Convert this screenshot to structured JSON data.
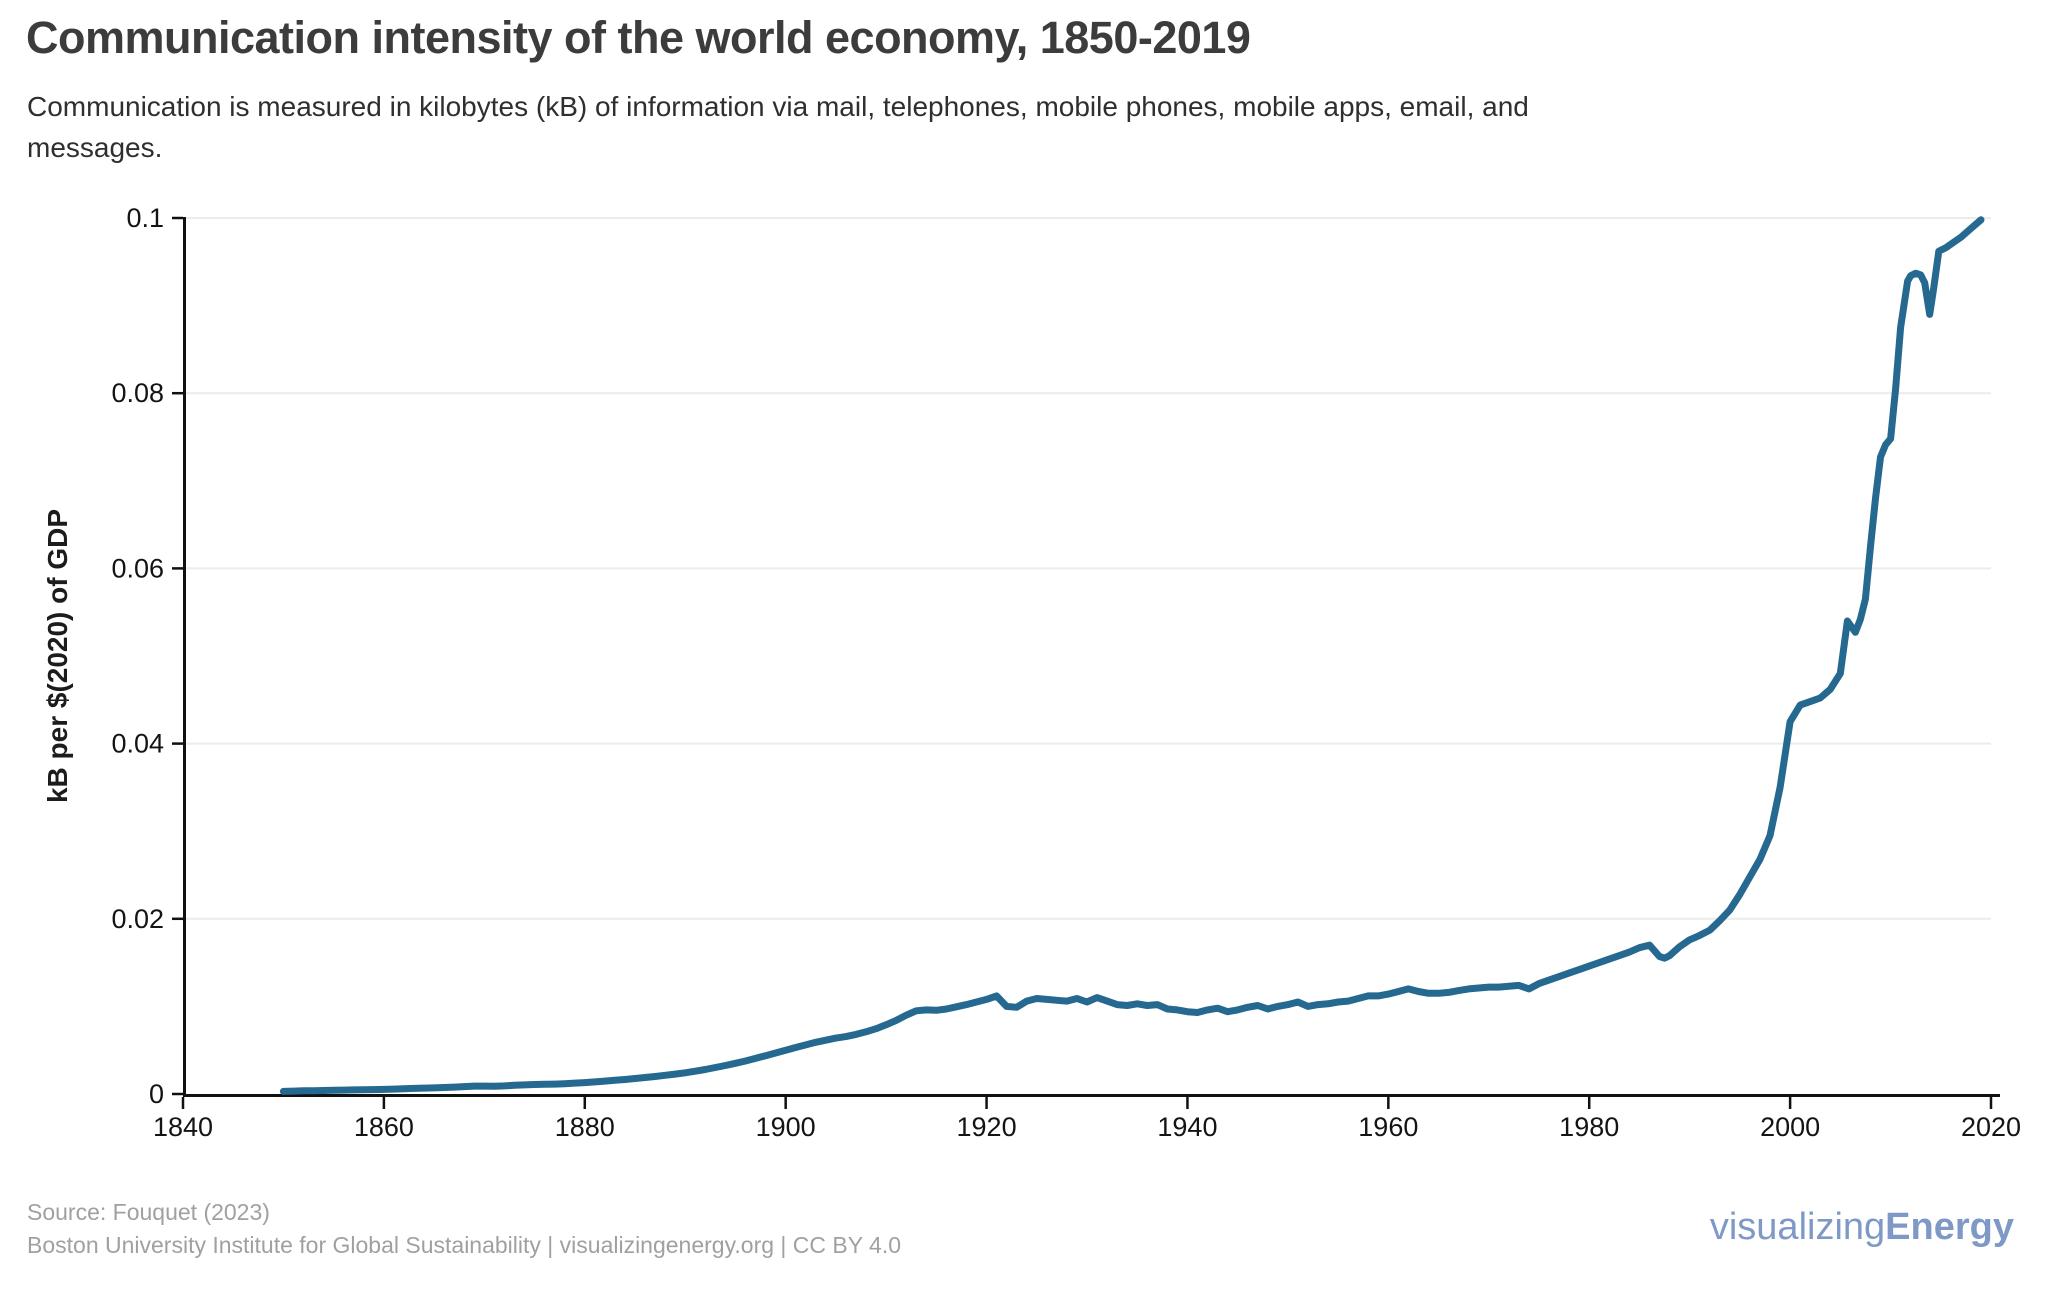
{
  "header": {
    "title": "Communication intensity of the world economy, 1850-2019",
    "subtitle_line1": "Communication is measured in kilobytes (kB) of information via mail, telephones, mobile phones, mobile apps, email, and",
    "subtitle_line2": "messages."
  },
  "footer": {
    "source": "Source: Fouquet (2023)",
    "attribution": "Boston University Institute for Global Sustainability | visualizingenergy.org | CC BY 4.0",
    "logo_regular": "visualizing",
    "logo_bold": "Energy"
  },
  "colors": {
    "background": "#ffffff",
    "title": "#3c3c3c",
    "subtitle": "#2f2f2f",
    "axis": "#111111",
    "grid": "#ececec",
    "tick_label": "#141414",
    "line": "#256890",
    "footer_text": "#a0a0a0",
    "logo": "#7f99c6"
  },
  "chart_data": {
    "type": "line",
    "title": "Communication intensity of the world economy, 1850-2019",
    "xlabel": "",
    "ylabel": "kB per $(2020) of GDP",
    "xlim": [
      1840,
      2020
    ],
    "ylim": [
      0,
      0.1
    ],
    "grid": "horizontal",
    "legend_position": "none",
    "x_ticks": [
      1840,
      1860,
      1880,
      1900,
      1920,
      1940,
      1960,
      1980,
      2000,
      2020
    ],
    "y_ticks": [
      {
        "value": 0,
        "label": "0"
      },
      {
        "value": 0.02,
        "label": "0.02"
      },
      {
        "value": 0.04,
        "label": "0.04"
      },
      {
        "value": 0.06,
        "label": "0.06"
      },
      {
        "value": 0.08,
        "label": "0.08"
      },
      {
        "value": 0.1,
        "label": "0.1"
      }
    ],
    "series": [
      {
        "name": "Communication intensity of the world economy",
        "color": "#256890",
        "stroke_width": 7,
        "points": [
          [
            1850,
            0.0003
          ],
          [
            1851,
            0.00033
          ],
          [
            1852,
            0.00036
          ],
          [
            1853,
            0.00038
          ],
          [
            1854,
            0.0004
          ],
          [
            1855,
            0.00042
          ],
          [
            1856,
            0.00045
          ],
          [
            1857,
            0.00047
          ],
          [
            1858,
            0.00049
          ],
          [
            1859,
            0.0005
          ],
          [
            1860,
            0.00052
          ],
          [
            1861,
            0.00056
          ],
          [
            1862,
            0.0006
          ],
          [
            1863,
            0.00064
          ],
          [
            1864,
            0.00067
          ],
          [
            1865,
            0.0007
          ],
          [
            1866,
            0.00074
          ],
          [
            1867,
            0.00079
          ],
          [
            1868,
            0.00085
          ],
          [
            1869,
            0.0009
          ],
          [
            1870,
            0.0009
          ],
          [
            1871,
            0.00089
          ],
          [
            1872,
            0.00093
          ],
          [
            1873,
            0.00099
          ],
          [
            1874,
            0.00104
          ],
          [
            1875,
            0.00108
          ],
          [
            1876,
            0.00111
          ],
          [
            1877,
            0.00113
          ],
          [
            1878,
            0.00118
          ],
          [
            1879,
            0.00124
          ],
          [
            1880,
            0.0013
          ],
          [
            1881,
            0.00138
          ],
          [
            1882,
            0.00147
          ],
          [
            1883,
            0.00156
          ],
          [
            1884,
            0.00166
          ],
          [
            1885,
            0.00177
          ],
          [
            1886,
            0.00188
          ],
          [
            1887,
            0.002
          ],
          [
            1888,
            0.00213
          ],
          [
            1889,
            0.00227
          ],
          [
            1890,
            0.00242
          ],
          [
            1891,
            0.0026
          ],
          [
            1892,
            0.0028
          ],
          [
            1893,
            0.00302
          ],
          [
            1894,
            0.00325
          ],
          [
            1895,
            0.0035
          ],
          [
            1896,
            0.00377
          ],
          [
            1897,
            0.00406
          ],
          [
            1898,
            0.00437
          ],
          [
            1899,
            0.00468
          ],
          [
            1900,
            0.005
          ],
          [
            1901,
            0.00531
          ],
          [
            1902,
            0.00561
          ],
          [
            1903,
            0.0059
          ],
          [
            1904,
            0.00614
          ],
          [
            1905,
            0.00638
          ],
          [
            1906,
            0.00655
          ],
          [
            1907,
            0.0068
          ],
          [
            1908,
            0.0071
          ],
          [
            1909,
            0.00745
          ],
          [
            1910,
            0.0079
          ],
          [
            1911,
            0.0084
          ],
          [
            1912,
            0.009
          ],
          [
            1913,
            0.0095
          ],
          [
            1914,
            0.0096
          ],
          [
            1915,
            0.00955
          ],
          [
            1916,
            0.0097
          ],
          [
            1917,
            0.00995
          ],
          [
            1918,
            0.0102
          ],
          [
            1919,
            0.0105
          ],
          [
            1920,
            0.0108
          ],
          [
            1921,
            0.0112
          ],
          [
            1922,
            0.01
          ],
          [
            1923,
            0.0099
          ],
          [
            1924,
            0.0106
          ],
          [
            1925,
            0.0109
          ],
          [
            1926,
            0.0108
          ],
          [
            1927,
            0.0107
          ],
          [
            1928,
            0.0106
          ],
          [
            1929,
            0.0109
          ],
          [
            1930,
            0.0105
          ],
          [
            1931,
            0.011
          ],
          [
            1932,
            0.0106
          ],
          [
            1933,
            0.0102
          ],
          [
            1934,
            0.0101
          ],
          [
            1935,
            0.0103
          ],
          [
            1936,
            0.0101
          ],
          [
            1937,
            0.0102
          ],
          [
            1938,
            0.0097
          ],
          [
            1939,
            0.0096
          ],
          [
            1940,
            0.0094
          ],
          [
            1941,
            0.0093
          ],
          [
            1942,
            0.0096
          ],
          [
            1943,
            0.0098
          ],
          [
            1944,
            0.0094
          ],
          [
            1945,
            0.0096
          ],
          [
            1946,
            0.0099
          ],
          [
            1947,
            0.0101
          ],
          [
            1948,
            0.0097
          ],
          [
            1949,
            0.01
          ],
          [
            1950,
            0.0102
          ],
          [
            1951,
            0.0105
          ],
          [
            1952,
            0.01
          ],
          [
            1953,
            0.0102
          ],
          [
            1954,
            0.0103
          ],
          [
            1955,
            0.0105
          ],
          [
            1956,
            0.0106
          ],
          [
            1957,
            0.0109
          ],
          [
            1958,
            0.0112
          ],
          [
            1959,
            0.0112
          ],
          [
            1960,
            0.0114
          ],
          [
            1961,
            0.0117
          ],
          [
            1962,
            0.012
          ],
          [
            1963,
            0.0117
          ],
          [
            1964,
            0.0115
          ],
          [
            1965,
            0.0115
          ],
          [
            1966,
            0.0116
          ],
          [
            1967,
            0.0118
          ],
          [
            1968,
            0.012
          ],
          [
            1969,
            0.0121
          ],
          [
            1970,
            0.0122
          ],
          [
            1971,
            0.0122
          ],
          [
            1972,
            0.0123
          ],
          [
            1973,
            0.0124
          ],
          [
            1974,
            0.012
          ],
          [
            1975,
            0.0126
          ],
          [
            1976,
            0.013
          ],
          [
            1977,
            0.0134
          ],
          [
            1978,
            0.0138
          ],
          [
            1979,
            0.0142
          ],
          [
            1980,
            0.0146
          ],
          [
            1981,
            0.015
          ],
          [
            1982,
            0.0154
          ],
          [
            1983,
            0.0158
          ],
          [
            1984,
            0.0162
          ],
          [
            1985,
            0.0167
          ],
          [
            1986,
            0.017
          ],
          [
            1987,
            0.0157
          ],
          [
            1987.5,
            0.0155
          ],
          [
            1988,
            0.0158
          ],
          [
            1989,
            0.0168
          ],
          [
            1990,
            0.0176
          ],
          [
            1991,
            0.0181
          ],
          [
            1992,
            0.0187
          ],
          [
            1993,
            0.0198
          ],
          [
            1994,
            0.021
          ],
          [
            1995,
            0.0228
          ],
          [
            1996,
            0.0248
          ],
          [
            1997,
            0.0268
          ],
          [
            1998,
            0.0295
          ],
          [
            1999,
            0.035
          ],
          [
            2000,
            0.0425
          ],
          [
            2001,
            0.0444
          ],
          [
            2002,
            0.0448
          ],
          [
            2003,
            0.0452
          ],
          [
            2004,
            0.0462
          ],
          [
            2005,
            0.048
          ],
          [
            2005.7,
            0.054
          ],
          [
            2006.5,
            0.0527
          ],
          [
            2007,
            0.0542
          ],
          [
            2007.5,
            0.0565
          ],
          [
            2008,
            0.0625
          ],
          [
            2008.5,
            0.068
          ],
          [
            2009,
            0.0727
          ],
          [
            2009.5,
            0.0741
          ],
          [
            2010,
            0.0748
          ],
          [
            2010.5,
            0.0805
          ],
          [
            2011,
            0.0875
          ],
          [
            2011.7,
            0.0928
          ],
          [
            2012,
            0.0934
          ],
          [
            2012.5,
            0.0937
          ],
          [
            2013,
            0.0935
          ],
          [
            2013.4,
            0.0926
          ],
          [
            2013.9,
            0.089
          ],
          [
            2014.3,
            0.092
          ],
          [
            2014.8,
            0.0962
          ],
          [
            2015.5,
            0.0966
          ],
          [
            2016,
            0.097
          ],
          [
            2017,
            0.0978
          ],
          [
            2018,
            0.0988
          ],
          [
            2019,
            0.0998
          ]
        ]
      }
    ]
  }
}
